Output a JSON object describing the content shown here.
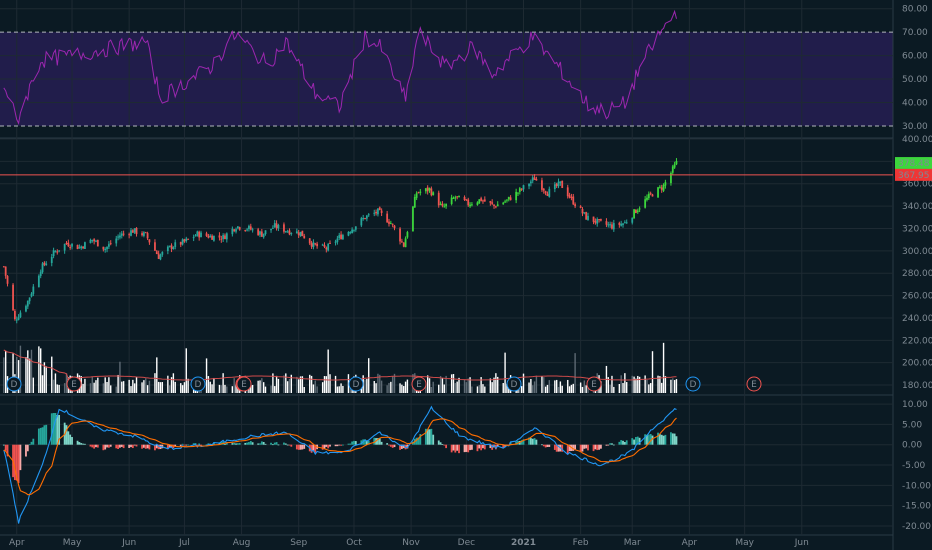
{
  "colors": {
    "background": "#0b1a23",
    "grid": "#1e2a33",
    "up_candle": "#26a69a",
    "up_candle_bright": "#3cd63c",
    "down_candle": "#ef5350",
    "rsi_line": "#9c27b0",
    "rsi_band": "#2a1f5a",
    "macd_line": "#2196f3",
    "signal_line": "#ff6d00",
    "hist_up": "#7fd6c8",
    "hist_down": "#ef5350",
    "volume_up": "#ffffff",
    "volume_down": "#ffffff",
    "resistance_line": "#ef5350",
    "last_price_badge": "#3cd63c",
    "resistance_badge": "#ef3636"
  },
  "x_axis": {
    "months": [
      "Apr",
      "May",
      "Jun",
      "Jul",
      "Aug",
      "Sep",
      "Oct",
      "Nov",
      "Dec",
      "2021",
      "Feb",
      "Mar",
      "Apr",
      "May",
      "Jun"
    ]
  },
  "rsi_pane": {
    "ticks": [
      "80.00",
      "70.00",
      "60.00",
      "50.00",
      "40.00",
      "30.00"
    ],
    "overbought": 70,
    "oversold": 30
  },
  "price_pane": {
    "ticks": [
      "400.00",
      "380.00",
      "360.00",
      "340.00",
      "320.00",
      "300.00",
      "280.00",
      "260.00",
      "240.00",
      "220.00",
      "200.00",
      "180.00"
    ],
    "last_price": "378.48",
    "resistance": "367.95"
  },
  "macd_pane": {
    "ticks": [
      "10.00",
      "5.00",
      "0.00",
      "-5.00",
      "-10.00",
      "-15.00",
      "-20.00"
    ]
  },
  "events": [
    {
      "kind": "dividend",
      "label": "D",
      "month": "Apr"
    },
    {
      "kind": "earnings",
      "label": "E",
      "month": "Apr"
    },
    {
      "kind": "dividend",
      "label": "D",
      "month": "Jun"
    },
    {
      "kind": "earnings",
      "label": "E",
      "month": "Jul"
    },
    {
      "kind": "earnings",
      "label": "E",
      "month": "Jul"
    },
    {
      "kind": "dividend",
      "label": "D",
      "month": "Sep"
    },
    {
      "kind": "earnings",
      "label": "E",
      "month": "Oct"
    },
    {
      "kind": "dividend",
      "label": "D",
      "month": "Dec"
    },
    {
      "kind": "earnings",
      "label": "E",
      "month": "Feb"
    },
    {
      "kind": "dividend",
      "label": "D",
      "month": "Mar"
    },
    {
      "kind": "earnings",
      "label": "E",
      "month": "Apr"
    }
  ],
  "chart_data": {
    "type": "candlestick",
    "xlabel": "",
    "ylabel": "",
    "price_ylim": [
      172,
      400
    ],
    "rsi_ylim": [
      27,
      82
    ],
    "macd_ylim": [
      -21,
      11
    ],
    "anchor_closes": [
      [
        "2020-03-25",
        286
      ],
      [
        "2020-03-31",
        238
      ],
      [
        "2020-04-07",
        255
      ],
      [
        "2020-04-14",
        284
      ],
      [
        "2020-04-21",
        298
      ],
      [
        "2020-04-28",
        307
      ],
      [
        "2020-05-05",
        303
      ],
      [
        "2020-05-12",
        310
      ],
      [
        "2020-05-19",
        302
      ],
      [
        "2020-05-27",
        314
      ],
      [
        "2020-06-03",
        318
      ],
      [
        "2020-06-10",
        314
      ],
      [
        "2020-06-17",
        295
      ],
      [
        "2020-06-24",
        304
      ],
      [
        "2020-07-01",
        308
      ],
      [
        "2020-07-08",
        315
      ],
      [
        "2020-07-15",
        313
      ],
      [
        "2020-07-22",
        312
      ],
      [
        "2020-07-29",
        322
      ],
      [
        "2020-08-05",
        320
      ],
      [
        "2020-08-12",
        315
      ],
      [
        "2020-08-19",
        322
      ],
      [
        "2020-08-26",
        318
      ],
      [
        "2020-09-02",
        316
      ],
      [
        "2020-09-09",
        305
      ],
      [
        "2020-09-16",
        302
      ],
      [
        "2020-09-23",
        312
      ],
      [
        "2020-09-30",
        320
      ],
      [
        "2020-10-07",
        330
      ],
      [
        "2020-10-14",
        335
      ],
      [
        "2020-10-21",
        325
      ],
      [
        "2020-10-28",
        305
      ],
      [
        "2020-11-04",
        352
      ],
      [
        "2020-11-11",
        355
      ],
      [
        "2020-11-18",
        338
      ],
      [
        "2020-11-25",
        348
      ],
      [
        "2020-12-02",
        342
      ],
      [
        "2020-12-09",
        346
      ],
      [
        "2020-12-16",
        340
      ],
      [
        "2020-12-23",
        345
      ],
      [
        "2020-12-31",
        355
      ],
      [
        "2021-01-07",
        365
      ],
      [
        "2021-01-14",
        352
      ],
      [
        "2021-01-21",
        360
      ],
      [
        "2021-01-28",
        344
      ],
      [
        "2021-02-04",
        330
      ],
      [
        "2021-02-11",
        325
      ],
      [
        "2021-02-18",
        322
      ],
      [
        "2021-02-25",
        325
      ],
      [
        "2021-03-04",
        338
      ],
      [
        "2021-03-11",
        350
      ],
      [
        "2021-03-18",
        358
      ],
      [
        "2021-03-25",
        378.48
      ]
    ],
    "rsi_anchors": [
      [
        "2020-03-25",
        48
      ],
      [
        "2020-04-01",
        32
      ],
      [
        "2020-04-14",
        58
      ],
      [
        "2020-05-01",
        60
      ],
      [
        "2020-06-10",
        66
      ],
      [
        "2020-06-18",
        42
      ],
      [
        "2020-07-15",
        55
      ],
      [
        "2020-07-29",
        69
      ],
      [
        "2020-08-15",
        56
      ],
      [
        "2020-08-25",
        66
      ],
      [
        "2020-09-10",
        44
      ],
      [
        "2020-09-23",
        38
      ],
      [
        "2020-10-07",
        68
      ],
      [
        "2020-10-16",
        63
      ],
      [
        "2020-10-29",
        41
      ],
      [
        "2020-11-05",
        70
      ],
      [
        "2020-11-20",
        55
      ],
      [
        "2020-12-05",
        64
      ],
      [
        "2020-12-15",
        52
      ],
      [
        "2021-01-06",
        68
      ],
      [
        "2021-01-20",
        55
      ],
      [
        "2021-02-05",
        39
      ],
      [
        "2021-02-15",
        36
      ],
      [
        "2021-02-26",
        40
      ],
      [
        "2021-03-05",
        55
      ],
      [
        "2021-03-15",
        68
      ],
      [
        "2021-03-25",
        79
      ]
    ],
    "macd_anchors": [
      [
        "2020-03-25",
        -1
      ],
      [
        "2020-04-02",
        -19
      ],
      [
        "2020-04-15",
        -5
      ],
      [
        "2020-04-24",
        9
      ],
      [
        "2020-05-15",
        4
      ],
      [
        "2020-06-05",
        2
      ],
      [
        "2020-06-20",
        -1
      ],
      [
        "2020-07-15",
        0
      ],
      [
        "2020-08-05",
        2
      ],
      [
        "2020-08-25",
        3
      ],
      [
        "2020-09-10",
        -2
      ],
      [
        "2020-09-25",
        -2
      ],
      [
        "2020-10-15",
        3
      ],
      [
        "2020-10-30",
        -1
      ],
      [
        "2020-11-12",
        9
      ],
      [
        "2020-11-28",
        2
      ],
      [
        "2020-12-20",
        -1
      ],
      [
        "2021-01-08",
        4
      ],
      [
        "2021-01-25",
        -2
      ],
      [
        "2021-02-12",
        -5
      ],
      [
        "2021-02-28",
        -2
      ],
      [
        "2021-03-12",
        4
      ],
      [
        "2021-03-25",
        9
      ]
    ]
  }
}
